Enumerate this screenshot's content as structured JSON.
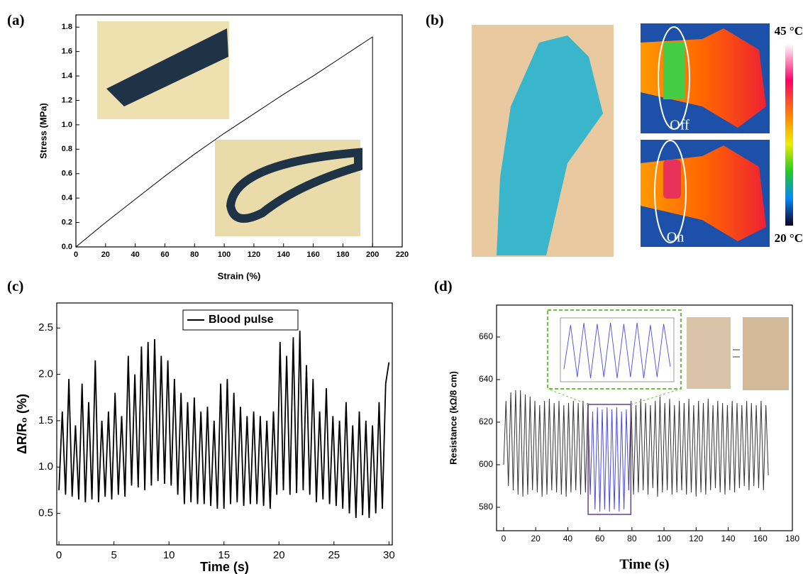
{
  "chart_data": [
    {
      "type": "line",
      "label": "(a)",
      "xlabel": "Strain (%)",
      "ylabel": "Stress (MPa)",
      "x": [
        0,
        20,
        40,
        60,
        80,
        100,
        120,
        140,
        160,
        180,
        200,
        200
      ],
      "series": [
        {
          "color": "#000000",
          "values": [
            0,
            0.2,
            0.39,
            0.58,
            0.76,
            0.93,
            1.09,
            1.25,
            1.4,
            1.56,
            1.72,
            0
          ]
        }
      ],
      "xlim": [
        0,
        220
      ],
      "xticks": [
        0,
        20,
        40,
        60,
        80,
        100,
        120,
        140,
        160,
        180,
        200,
        220
      ],
      "ylim": [
        0,
        1.9
      ],
      "yticks": [
        {
          "value": 0,
          "label": "0.0"
        },
        0.2,
        0.4,
        0.6,
        0.8,
        {
          "value": 1,
          "label": "1.0"
        },
        1.2,
        1.4,
        1.6,
        1.8
      ]
    },
    {
      "type": "line",
      "label": "(c)",
      "xlabel": "Time (s)",
      "ylabel": "ΔR/R₀ (%)",
      "x": [
        0,
        0.3,
        0.6,
        0.9,
        1.2,
        1.5,
        1.8,
        2.1,
        2.4,
        2.7,
        3,
        3.3,
        3.6,
        3.9,
        4.2,
        4.5,
        4.8,
        5.1,
        5.4,
        5.7,
        6,
        6.3,
        6.6,
        6.9,
        7.2,
        7.5,
        7.8,
        8.1,
        8.4,
        8.7,
        9,
        9.3,
        9.6,
        9.9,
        10.2,
        10.5,
        10.8,
        11.1,
        11.4,
        11.7,
        12,
        12.3,
        12.6,
        12.9,
        13.2,
        13.5,
        13.8,
        14.1,
        14.4,
        14.7,
        15,
        15.3,
        15.6,
        15.9,
        16.2,
        16.5,
        16.8,
        17.1,
        17.4,
        17.7,
        18,
        18.3,
        18.6,
        18.9,
        19.2,
        19.5,
        19.8,
        20.1,
        20.4,
        20.7,
        21,
        21.3,
        21.6,
        21.9,
        22.2,
        22.5,
        22.8,
        23.1,
        23.4,
        23.7,
        24,
        24.3,
        24.6,
        24.9,
        25.2,
        25.5,
        25.8,
        26.1,
        26.4,
        26.7,
        27,
        27.3,
        27.6,
        27.9,
        28.2,
        28.5,
        28.8,
        29.1,
        29.4,
        29.7,
        30
      ],
      "series": [
        {
          "name": "Blood pulse",
          "color": "#000000",
          "values": [
            0.75,
            1.6,
            0.7,
            1.95,
            0.68,
            1.45,
            0.65,
            1.9,
            0.62,
            1.7,
            0.65,
            2.15,
            0.62,
            1.5,
            0.68,
            1.6,
            0.65,
            1.8,
            0.7,
            1.55,
            0.68,
            2.2,
            0.8,
            2.0,
            0.78,
            2.3,
            0.75,
            2.35,
            0.8,
            2.38,
            0.85,
            2.2,
            0.82,
            2.15,
            0.8,
            1.95,
            0.7,
            1.8,
            0.6,
            1.7,
            0.62,
            1.75,
            0.6,
            1.6,
            0.6,
            1.65,
            0.58,
            1.5,
            0.55,
            1.9,
            0.55,
            1.95,
            0.6,
            1.8,
            0.62,
            1.65,
            0.58,
            1.55,
            0.6,
            1.6,
            0.6,
            1.55,
            0.58,
            1.5,
            0.55,
            1.6,
            0.7,
            2.35,
            0.75,
            2.2,
            0.7,
            2.4,
            0.72,
            2.47,
            0.75,
            2.1,
            0.7,
            1.95,
            0.62,
            1.6,
            0.65,
            1.85,
            0.6,
            1.55,
            0.58,
            1.5,
            0.55,
            1.7,
            0.5,
            1.45,
            0.45,
            1.6,
            0.48,
            1.5,
            0.45,
            1.45,
            0.5,
            1.7,
            0.55,
            1.9,
            2.13
          ]
        }
      ],
      "xlim": [
        -0.2,
        30.3
      ],
      "xticks": [
        0,
        5,
        10,
        15,
        20,
        25,
        30
      ],
      "ylim": [
        0.16,
        2.77
      ],
      "yticks": [
        0.5,
        {
          "value": 1,
          "label": "1.0"
        },
        1.5,
        {
          "value": 2,
          "label": "2.0"
        },
        2.5
      ]
    },
    {
      "type": "line",
      "label": "(d)",
      "xlabel": "Time (s)",
      "ylabel": "Resistance (kΩ/8 cm)",
      "series": [
        {
          "color": "#333333",
          "x": [
            0,
            1.5,
            3,
            4.5,
            6,
            7.5,
            9,
            10.5,
            12,
            13.5,
            15,
            16.5,
            18,
            19.5,
            21,
            22.5,
            24,
            25.5,
            27,
            28.5,
            30,
            31.5,
            33,
            34.5,
            36,
            37.5,
            39,
            40.5,
            42,
            43.5,
            45,
            46.5,
            48,
            49.5,
            51,
            52.5,
            54,
            55.5,
            57,
            58.5,
            60,
            61.5,
            63,
            64.5,
            66,
            67.5,
            69,
            70.5,
            72,
            73.5,
            75,
            76.5,
            78,
            79.5,
            81,
            82.5,
            84,
            85.5,
            87,
            88.5,
            90,
            91.5,
            93,
            94.5,
            96,
            97.5,
            99,
            100.5,
            102,
            103.5,
            105,
            106.5,
            108,
            109.5,
            111,
            112.5,
            114,
            115.5,
            117,
            118.5,
            120,
            121.5,
            123,
            124.5,
            126,
            127.5,
            129,
            130.5,
            132,
            133.5,
            135,
            136.5,
            138,
            139.5,
            141,
            142.5,
            144,
            145.5,
            147,
            148.5,
            150,
            151.5,
            153,
            154.5,
            156,
            157.5,
            159,
            160.5,
            162,
            163.5,
            165
          ],
          "values": [
            600,
            630,
            590,
            634,
            588,
            635,
            586,
            635,
            585,
            633,
            586,
            632,
            588,
            630,
            587,
            628,
            585,
            630,
            586,
            631,
            588,
            629,
            587,
            630,
            586,
            628,
            585,
            629,
            587,
            630,
            588,
            629,
            586,
            630,
            587,
            629,
            586,
            null,
            null,
            null,
            null,
            null,
            null,
            null,
            null,
            null,
            null,
            null,
            null,
            null,
            null,
            null,
            588,
            630,
            586,
            628,
            587,
            631,
            588,
            629,
            586,
            628,
            589,
            630,
            585,
            632,
            587,
            629,
            588,
            631,
            586,
            628,
            587,
            630,
            588,
            629,
            586,
            631,
            587,
            628,
            585,
            630,
            587,
            629,
            586,
            631,
            588,
            628,
            589,
            630,
            587,
            629,
            586,
            628,
            588,
            630,
            587,
            629,
            589,
            628,
            590,
            630,
            588,
            629,
            590,
            628,
            589,
            630,
            588,
            628,
            595
          ]
        },
        {
          "color": "#4a4ae0",
          "x": [
            54,
            55.5,
            57,
            58.5,
            60,
            61.5,
            63,
            64.5,
            66,
            67.5,
            69,
            70.5,
            72,
            73.5,
            75,
            76.5,
            78
          ],
          "values": [
            586,
            625,
            579,
            627,
            578,
            626,
            579,
            627,
            578,
            626,
            579,
            627,
            578,
            625,
            579,
            626,
            588
          ]
        }
      ],
      "xlim": [
        -4.4,
        180
      ],
      "xticks": [
        0,
        20,
        40,
        60,
        80,
        100,
        120,
        140,
        160,
        180
      ],
      "ylim": [
        569,
        675
      ],
      "yticks": [
        580,
        600,
        620,
        640,
        660
      ]
    }
  ],
  "photo_panel": {
    "label": "(b)",
    "thermal_labels": [
      "Off",
      "On"
    ],
    "colorbar_labels": [
      "45 °C",
      "20 °C"
    ]
  }
}
